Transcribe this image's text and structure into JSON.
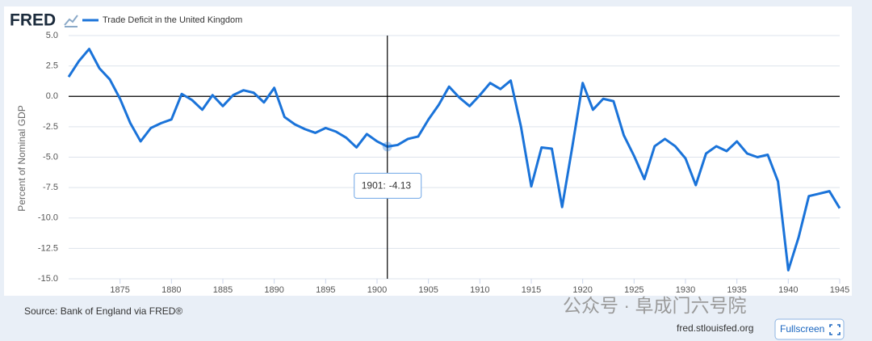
{
  "chart_data": {
    "type": "line",
    "logo": "FRED",
    "ylabel": "Percent of Nominal GDP",
    "source": "Source: Bank of England via FRED®",
    "url": "fred.stlouisfed.org",
    "button": "Fullscreen",
    "watermark": "公众号 · 阜成门六号院",
    "tooltip_label": "1901:",
    "tooltip_index": 31,
    "x": [
      1870,
      1871,
      1872,
      1873,
      1874,
      1875,
      1876,
      1877,
      1878,
      1879,
      1880,
      1881,
      1882,
      1883,
      1884,
      1885,
      1886,
      1887,
      1888,
      1889,
      1890,
      1891,
      1892,
      1893,
      1894,
      1895,
      1896,
      1897,
      1898,
      1899,
      1900,
      1901,
      1902,
      1903,
      1904,
      1905,
      1906,
      1907,
      1908,
      1909,
      1910,
      1911,
      1912,
      1913,
      1914,
      1915,
      1916,
      1917,
      1918,
      1919,
      1920,
      1921,
      1922,
      1923,
      1924,
      1925,
      1926,
      1927,
      1928,
      1929,
      1930,
      1931,
      1932,
      1933,
      1934,
      1935,
      1936,
      1937,
      1938,
      1939,
      1940,
      1941,
      1942,
      1943,
      1944,
      1945
    ],
    "series": [
      {
        "name": "Trade Deficit in the United Kingdom",
        "color": "#1a73d9",
        "values": [
          1.6,
          2.9,
          3.9,
          2.3,
          1.4,
          -0.2,
          -2.2,
          -3.7,
          -2.6,
          -2.2,
          -1.9,
          0.2,
          -0.3,
          -1.1,
          0.1,
          -0.8,
          0.1,
          0.5,
          0.3,
          -0.5,
          0.7,
          -1.7,
          -2.3,
          -2.7,
          -3.0,
          -2.6,
          -2.9,
          -3.4,
          -4.2,
          -3.1,
          -3.7,
          -4.13,
          -4.0,
          -3.5,
          -3.3,
          -1.9,
          -0.7,
          0.8,
          -0.1,
          -0.8,
          0.1,
          1.1,
          0.6,
          1.3,
          -2.5,
          -7.4,
          -4.2,
          -4.3,
          -9.1,
          -4.1,
          1.1,
          -1.1,
          -0.2,
          -0.4,
          -3.2,
          -4.9,
          -6.8,
          -4.1,
          -3.5,
          -4.1,
          -5.1,
          -7.3,
          -4.7,
          -4.1,
          -4.5,
          -3.7,
          -4.7,
          -5.0,
          -4.8,
          -7.0,
          -14.3,
          -11.6,
          -8.2,
          -8.0,
          -7.8,
          -9.2
        ]
      }
    ],
    "xlim": [
      1870,
      1945
    ],
    "xticks": [
      1875,
      1880,
      1885,
      1890,
      1895,
      1900,
      1905,
      1910,
      1915,
      1920,
      1925,
      1930,
      1935,
      1940,
      1945
    ],
    "ylim": [
      -15,
      5
    ],
    "yticks": [
      {
        "value": 5,
        "label": "5.0"
      },
      {
        "value": 2.5,
        "label": "2.5"
      },
      {
        "value": 0,
        "label": "0.0"
      },
      {
        "value": -2.5,
        "label": "-2.5"
      },
      {
        "value": -5,
        "label": "-5.0"
      },
      {
        "value": -7.5,
        "label": "-7.5"
      },
      {
        "value": -10,
        "label": "-10.0"
      },
      {
        "value": -12.5,
        "label": "-12.5"
      },
      {
        "value": -15,
        "label": "-15.0"
      }
    ],
    "grid": true
  }
}
